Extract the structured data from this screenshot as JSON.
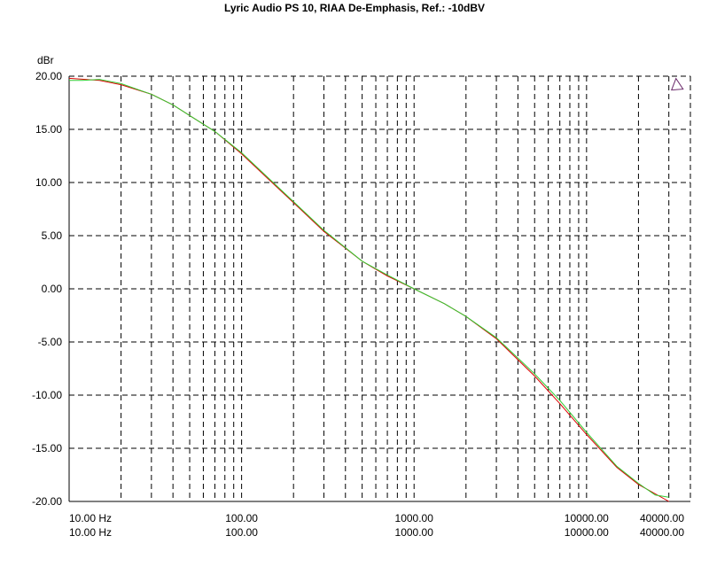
{
  "chart_data": {
    "type": "line",
    "title": "Lyric Audio PS 10, RIAA De-Emphasis, Ref.: -10dBV",
    "ylabel": "dBr",
    "x_scale": "log",
    "xlim": [
      10,
      40000
    ],
    "ylim": [
      -20,
      20
    ],
    "grid": true,
    "y_ticks": [
      "20.00",
      "15.00",
      "10.00",
      "5.00",
      "0.00",
      "-5.00",
      "-10.00",
      "-15.00",
      "-20.00"
    ],
    "x_tick_row1": [
      "10.00 Hz",
      "100.00",
      "1000.00",
      "10000.00",
      "40000.00"
    ],
    "x_tick_row2": [
      "10.00 Hz",
      "100.00",
      "1000.00",
      "10000.00",
      "40000.00"
    ],
    "series": [
      {
        "color": "#dd0000",
        "x": [
          10,
          15,
          20,
          30,
          40,
          50,
          70,
          100,
          150,
          200,
          300,
          500,
          700,
          1000,
          1500,
          2000,
          3000,
          5000,
          7000,
          10000,
          15000,
          20000,
          30000
        ],
        "y": [
          19.8,
          19.6,
          19.2,
          18.3,
          17.3,
          16.3,
          14.8,
          12.7,
          10.0,
          8.1,
          5.4,
          2.6,
          1.2,
          0.0,
          -1.4,
          -2.6,
          -4.7,
          -8.2,
          -10.8,
          -13.7,
          -16.8,
          -18.4,
          -20.0
        ]
      },
      {
        "color": "#33cc33",
        "x": [
          10,
          12,
          15,
          20,
          30,
          40,
          50,
          70,
          100,
          150,
          200,
          300,
          500,
          700,
          1000,
          1500,
          2000,
          3000,
          5000,
          7000,
          10000,
          15000,
          20000,
          25000,
          30000
        ],
        "y": [
          19.6,
          19.6,
          19.7,
          19.3,
          18.3,
          17.3,
          16.3,
          14.8,
          12.8,
          10.1,
          8.2,
          5.5,
          2.6,
          1.3,
          0.0,
          -1.4,
          -2.6,
          -4.6,
          -8.0,
          -10.5,
          -13.5,
          -16.7,
          -18.3,
          -19.4,
          -19.6
        ]
      }
    ],
    "marker": {
      "type": "triangle",
      "x": 33000,
      "y": 19.2
    }
  }
}
